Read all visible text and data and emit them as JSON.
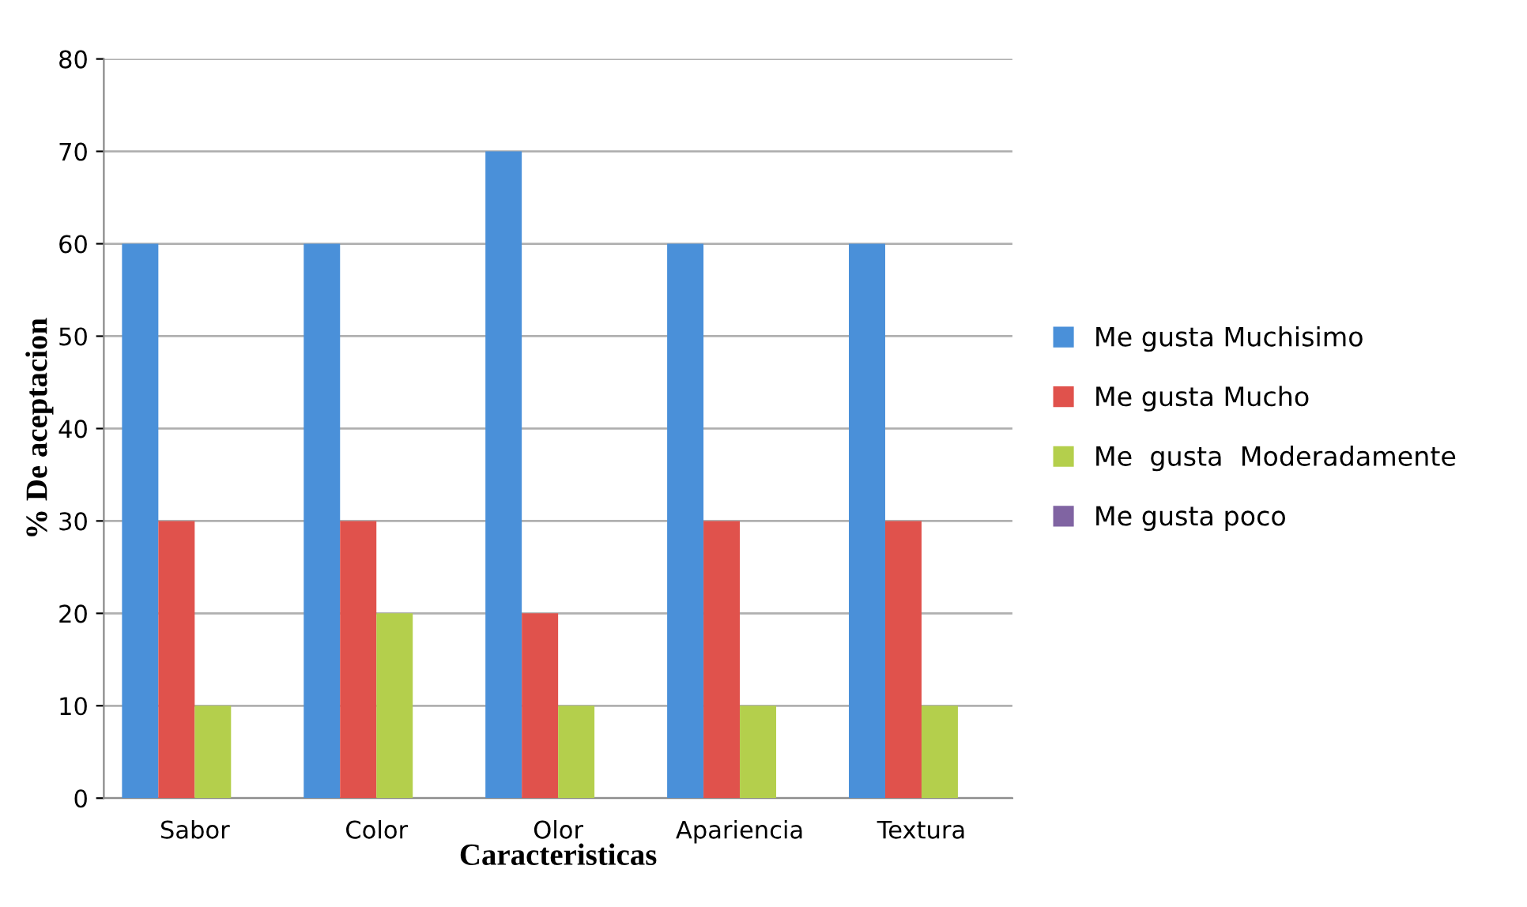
{
  "chart_data": {
    "type": "bar",
    "xlabel": "Caracteristicas",
    "ylabel": "% De aceptacion",
    "categories": [
      "Sabor",
      "Color",
      "Olor",
      "Apariencia",
      "Textura"
    ],
    "series": [
      {
        "name": "Me gusta Muchisimo",
        "color": "#4a90d9",
        "values": [
          60,
          60,
          70,
          60,
          60
        ]
      },
      {
        "name": "Me gusta Mucho",
        "color": "#e0524c",
        "values": [
          30,
          30,
          20,
          30,
          30
        ]
      },
      {
        "name": "Me  gusta  Moderadamente",
        "color": "#b4cf4c",
        "values": [
          10,
          20,
          10,
          10,
          10
        ]
      },
      {
        "name": "Me gusta poco",
        "color": "#8064a2",
        "values": [
          0,
          0,
          0,
          0,
          0
        ]
      }
    ],
    "ylim": [
      0,
      80
    ],
    "yticks": [
      0,
      10,
      20,
      30,
      40,
      50,
      60,
      70,
      80
    ],
    "grid": "y",
    "legend": "right"
  }
}
